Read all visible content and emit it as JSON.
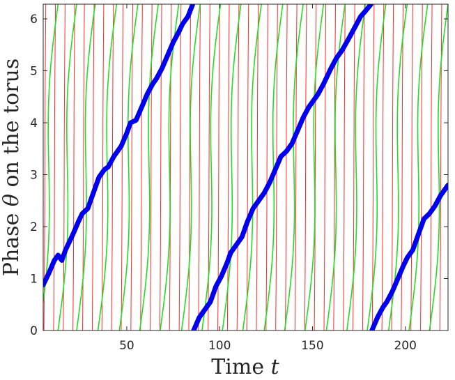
{
  "chart_data": {
    "type": "line",
    "title": "",
    "xlabel": {
      "prefix": "Time ",
      "symbol": "t"
    },
    "ylabel": {
      "prefix": "Phase ",
      "symbol": "θ",
      "suffix": " on the torus"
    },
    "xlim": [
      5,
      223
    ],
    "ylim": [
      0,
      6.283
    ],
    "xticks": [
      50,
      100,
      150,
      200
    ],
    "yticks": [
      0,
      1,
      2,
      3,
      4,
      5,
      6
    ],
    "grid": false,
    "box": true,
    "colors": {
      "red_fibers": "#ff2a2a",
      "green_fibers": "#22dd22",
      "trajectory": "#0000ee",
      "axes": "#262626"
    },
    "series": [
      {
        "role": "red fast-phase fibers",
        "period_t": 5.2,
        "offsets_t": [
          5.4,
          10.6,
          15.8,
          21.0,
          26.2,
          31.4,
          36.6,
          41.8,
          47.0,
          52.2,
          57.4,
          62.6,
          67.8,
          73.0,
          78.2,
          83.4,
          88.6,
          93.8,
          99.0,
          104.2,
          109.4,
          114.6,
          119.8,
          125.0,
          130.2,
          135.4,
          140.6,
          145.8,
          151.0,
          156.2,
          161.4,
          166.6,
          171.8,
          177.0,
          182.2,
          187.4,
          192.6,
          197.8,
          203.0,
          208.2,
          213.4,
          218.6
        ],
        "crossing_width_t": 1.0
      },
      {
        "role": "green slow-phase fibers",
        "offsets_t": [
          3.0,
          13.0,
          23.0,
          34.5,
          46.0,
          57.0,
          68.0,
          79.5,
          90.5,
          101.5,
          112.5,
          124.0,
          135.0,
          146.0,
          157.5,
          168.5,
          179.5,
          191.0,
          202.0,
          213.0
        ],
        "crossing_width_t": 10.0
      },
      {
        "role": "blue trajectory",
        "segments": [
          [
            [
              5,
              0.88
            ],
            [
              8,
              1.1
            ],
            [
              11,
              1.35
            ],
            [
              13,
              1.45
            ],
            [
              15,
              1.35
            ],
            [
              17,
              1.55
            ],
            [
              21,
              1.85
            ],
            [
              24,
              2.1
            ],
            [
              26,
              2.25
            ],
            [
              29,
              2.35
            ],
            [
              32,
              2.65
            ],
            [
              35,
              2.95
            ],
            [
              38,
              3.1
            ],
            [
              40,
              3.15
            ],
            [
              43,
              3.35
            ],
            [
              47,
              3.55
            ],
            [
              50,
              3.8
            ],
            [
              52,
              4.0
            ],
            [
              55,
              4.05
            ],
            [
              58,
              4.3
            ],
            [
              61,
              4.55
            ],
            [
              64,
              4.75
            ],
            [
              66,
              4.85
            ],
            [
              69,
              5.05
            ],
            [
              72,
              5.3
            ],
            [
              75,
              5.55
            ],
            [
              78,
              5.75
            ],
            [
              80,
              5.9
            ],
            [
              83,
              6.05
            ],
            [
              85.5,
              6.28
            ]
          ],
          [
            [
              86,
              0.0
            ],
            [
              89,
              0.25
            ],
            [
              92,
              0.4
            ],
            [
              95,
              0.55
            ],
            [
              98,
              0.85
            ],
            [
              101,
              1.05
            ],
            [
              104,
              1.3
            ],
            [
              106,
              1.5
            ],
            [
              109,
              1.65
            ],
            [
              112,
              1.8
            ],
            [
              115,
              2.1
            ],
            [
              118,
              2.35
            ],
            [
              121,
              2.5
            ],
            [
              124,
              2.65
            ],
            [
              127,
              2.85
            ],
            [
              130,
              3.1
            ],
            [
              133,
              3.35
            ],
            [
              136,
              3.45
            ],
            [
              139,
              3.6
            ],
            [
              142,
              3.85
            ],
            [
              145,
              4.1
            ],
            [
              148,
              4.3
            ],
            [
              150,
              4.4
            ],
            [
              153,
              4.55
            ],
            [
              156,
              4.75
            ],
            [
              160,
              5.05
            ],
            [
              163,
              5.25
            ],
            [
              166,
              5.4
            ],
            [
              170,
              5.65
            ],
            [
              173,
              5.85
            ],
            [
              176,
              6.05
            ],
            [
              178.5,
              6.15
            ],
            [
              181.5,
              6.28
            ]
          ],
          [
            [
              182,
              0.0
            ],
            [
              185,
              0.25
            ],
            [
              188,
              0.45
            ],
            [
              190,
              0.55
            ],
            [
              193,
              0.75
            ],
            [
              196,
              1.0
            ],
            [
              199,
              1.25
            ],
            [
              201,
              1.4
            ],
            [
              204,
              1.55
            ],
            [
              207,
              1.85
            ],
            [
              210,
              2.15
            ],
            [
              213,
              2.25
            ],
            [
              216,
              2.4
            ],
            [
              219,
              2.6
            ],
            [
              223,
              2.8
            ]
          ]
        ]
      }
    ]
  }
}
